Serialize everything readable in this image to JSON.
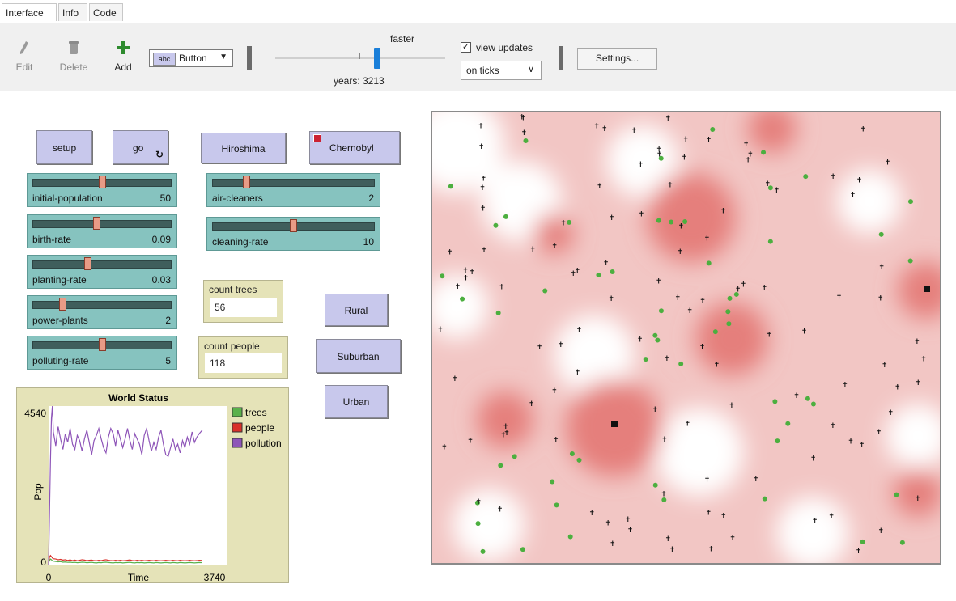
{
  "tabs": [
    {
      "label": "Interface"
    },
    {
      "label": "Info"
    },
    {
      "label": "Code"
    }
  ],
  "toolbar": {
    "edit_label": "Edit",
    "delete_label": "Delete",
    "add_label": "Add",
    "widget_type": "Button",
    "speed_label": "faster",
    "speed_fraction": 0.6,
    "ticks_label": "years: 3213",
    "view_updates_label": "view updates",
    "view_updates_checked": true,
    "update_mode": "on ticks",
    "settings_label": "Settings..."
  },
  "buttons": {
    "setup": "setup",
    "go": "go",
    "hiroshima": "Hiroshima",
    "chernobyl": "Chernobyl",
    "rural": "Rural",
    "suburban": "Suburban",
    "urban": "Urban"
  },
  "sliders": [
    {
      "name": "initial-population",
      "value": "50",
      "fraction": 0.5
    },
    {
      "name": "birth-rate",
      "value": "0.09",
      "fraction": 0.46
    },
    {
      "name": "planting-rate",
      "value": "0.03",
      "fraction": 0.39
    },
    {
      "name": "power-plants",
      "value": "2",
      "fraction": 0.2
    },
    {
      "name": "polluting-rate",
      "value": "5",
      "fraction": 0.5
    },
    {
      "name": "air-cleaners",
      "value": "2",
      "fraction": 0.2
    },
    {
      "name": "cleaning-rate",
      "value": "10",
      "fraction": 0.5
    }
  ],
  "monitors": {
    "trees_label": "count trees",
    "trees_value": "56",
    "people_label": "count people",
    "people_value": "118"
  },
  "colors": {
    "button": "#c8c8ec",
    "slider": "#86c3bf",
    "monitor": "#e5e3b8",
    "trees": "#59b14b",
    "people": "#d9302a",
    "pollution": "#8e55b8"
  },
  "chart_data": {
    "type": "line",
    "title": "World Status",
    "xlabel": "Time",
    "ylabel": "Pop",
    "xlim": [
      0,
      3740
    ],
    "ylim": [
      0,
      4540
    ],
    "x_tick_labels": [
      "0",
      "3740"
    ],
    "y_tick_labels": [
      "0",
      "4540"
    ],
    "legend": "right",
    "x": [
      0,
      20,
      40,
      60,
      80,
      100,
      150,
      200,
      250,
      300,
      350,
      400,
      450,
      500,
      550,
      600,
      650,
      700,
      750,
      800,
      850,
      900,
      950,
      1000,
      1050,
      1100,
      1150,
      1200,
      1250,
      1300,
      1350,
      1400,
      1450,
      1500,
      1550,
      1600,
      1650,
      1700,
      1750,
      1800,
      1850,
      1900,
      1950,
      2000,
      2050,
      2100,
      2150,
      2200,
      2250,
      2300,
      2350,
      2400,
      2450,
      2500,
      2550,
      2600,
      2650,
      2700,
      2750,
      2800,
      2850,
      2900,
      2950,
      3000,
      3050,
      3100,
      3150,
      3213
    ],
    "series": [
      {
        "name": "trees",
        "values": [
          50,
          120,
          160,
          140,
          110,
          100,
          90,
          80,
          85,
          70,
          75,
          65,
          70,
          60,
          65,
          55,
          60,
          70,
          65,
          55,
          60,
          65,
          55,
          50,
          60,
          55,
          65,
          70,
          60,
          55,
          50,
          60,
          55,
          60,
          50,
          55,
          60,
          65,
          55,
          50,
          60,
          55,
          60,
          50,
          55,
          60,
          55,
          50,
          60,
          55,
          50,
          55,
          60,
          55,
          50,
          60,
          55,
          50,
          60,
          55,
          50,
          55,
          60,
          55,
          50,
          55,
          60,
          56
        ]
      },
      {
        "name": "people",
        "values": [
          50,
          220,
          260,
          230,
          190,
          170,
          160,
          140,
          150,
          130,
          140,
          120,
          135,
          115,
          130,
          110,
          125,
          140,
          130,
          115,
          125,
          130,
          115,
          110,
          125,
          115,
          130,
          140,
          125,
          115,
          110,
          125,
          115,
          125,
          110,
          115,
          125,
          135,
          115,
          110,
          125,
          115,
          125,
          110,
          115,
          125,
          115,
          110,
          125,
          115,
          110,
          115,
          125,
          115,
          110,
          125,
          115,
          110,
          125,
          115,
          110,
          115,
          125,
          115,
          110,
          115,
          125,
          118
        ]
      },
      {
        "name": "pollution",
        "values": [
          0,
          1500,
          3000,
          4200,
          4540,
          3800,
          3400,
          3950,
          3600,
          3300,
          3750,
          3500,
          3900,
          3450,
          3300,
          3700,
          3550,
          3250,
          3600,
          3850,
          3500,
          3150,
          3550,
          3700,
          3900,
          3600,
          3350,
          3200,
          3650,
          3900,
          3750,
          3400,
          3850,
          3600,
          3350,
          3600,
          3900,
          3550,
          3300,
          3750,
          3600,
          3450,
          3150,
          3700,
          3900,
          3550,
          3250,
          3500,
          3300,
          3650,
          3850,
          3450,
          3150,
          3100,
          3350,
          3600,
          3300,
          3450,
          3200,
          3550,
          3350,
          3650,
          3450,
          3800,
          3500,
          3650,
          3750,
          3850
        ]
      }
    ]
  }
}
